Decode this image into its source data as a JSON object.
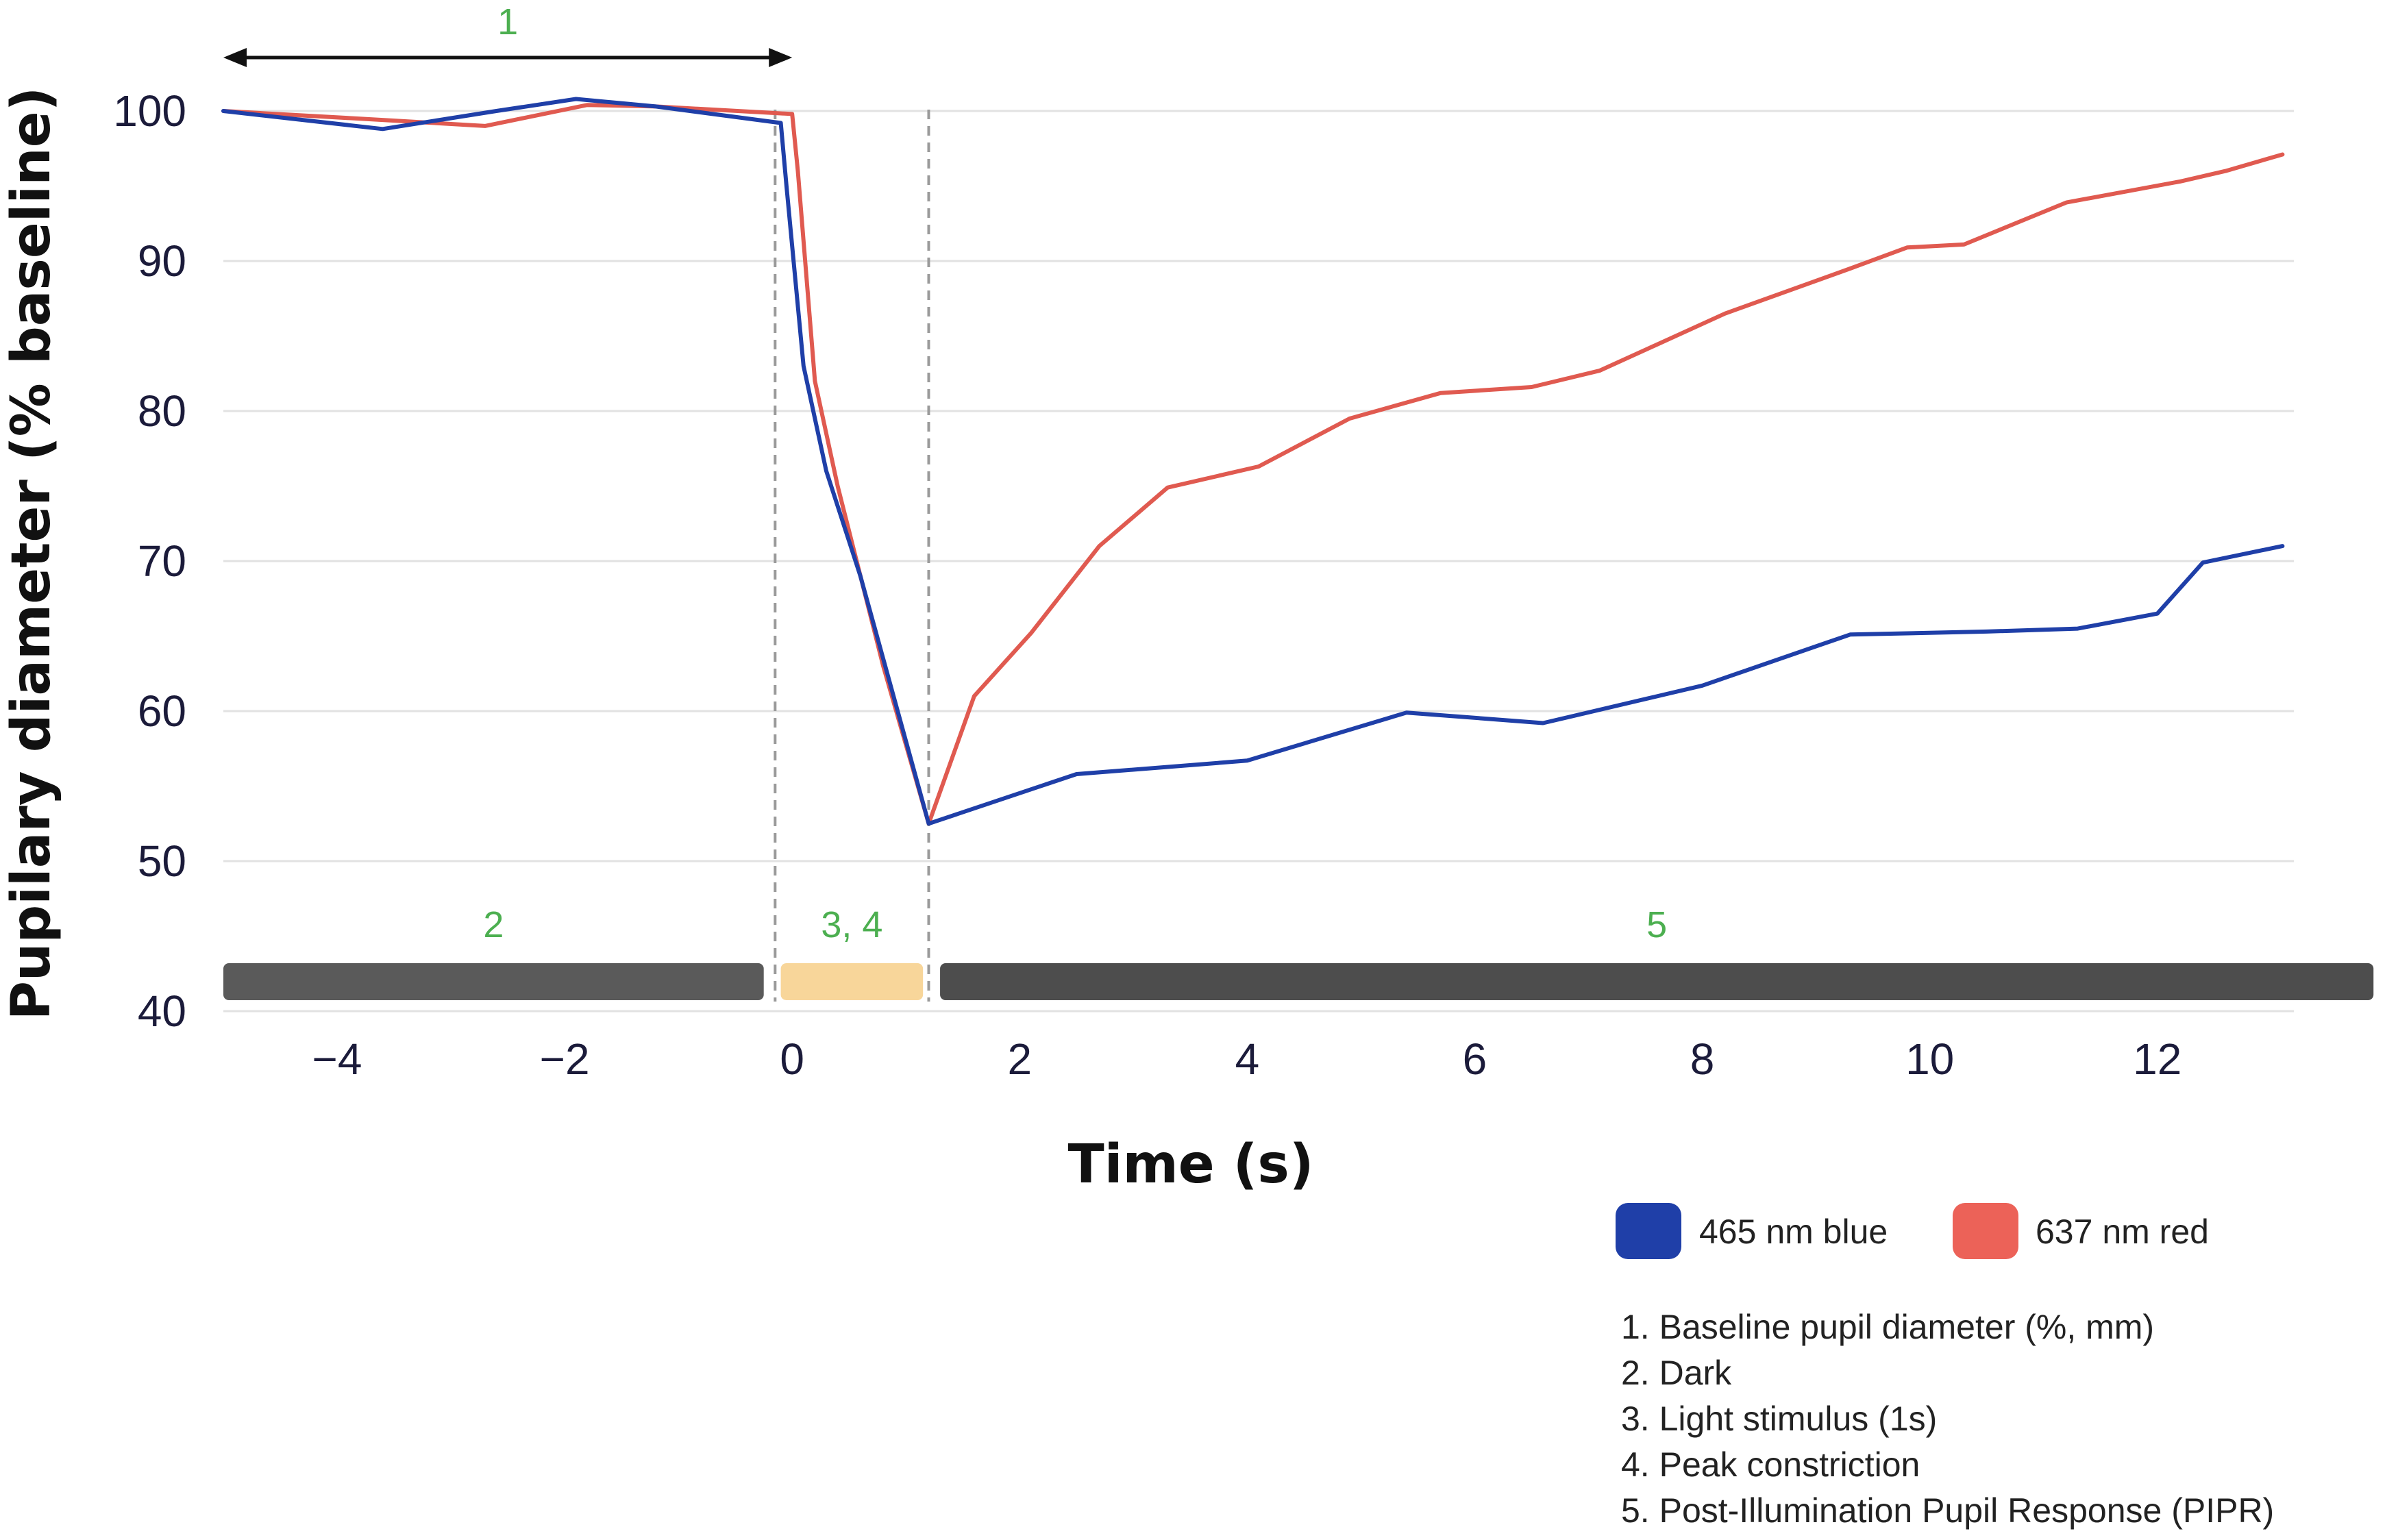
{
  "chart_data": {
    "type": "line",
    "xlabel": "Time (s)",
    "ylabel": "Pupilary diameter (% baseline)",
    "xlim": [
      -5,
      13.2
    ],
    "ylim": [
      40,
      100
    ],
    "x_ticks": [
      "-4",
      "-2",
      "0",
      "2",
      "4",
      "6",
      "8",
      "10",
      "12"
    ],
    "y_ticks": [
      "40",
      "50",
      "60",
      "70",
      "80",
      "90",
      "100"
    ],
    "grid": true,
    "series": [
      {
        "name": "465 nm blue",
        "color": "#1f3fa8",
        "points": [
          [
            -5,
            100
          ],
          [
            -3.6,
            98.8
          ],
          [
            -2.6,
            100
          ],
          [
            -1.9,
            100.8
          ],
          [
            -1.2,
            100.3
          ],
          [
            -0.1,
            99.2
          ],
          [
            -0.05,
            95
          ],
          [
            0.1,
            83
          ],
          [
            0.3,
            76
          ],
          [
            0.6,
            69
          ],
          [
            1.2,
            52.5
          ],
          [
            2.5,
            55.8
          ],
          [
            4,
            56.7
          ],
          [
            5.4,
            59.9
          ],
          [
            6.6,
            59.2
          ],
          [
            8,
            61.7
          ],
          [
            9.3,
            65.1
          ],
          [
            10.5,
            65.3
          ],
          [
            11.3,
            65.5
          ],
          [
            12,
            66.5
          ],
          [
            12.4,
            69.9
          ],
          [
            13.1,
            71
          ]
        ]
      },
      {
        "name": "637 nm red",
        "color": "#e05a50",
        "points": [
          [
            -5,
            100
          ],
          [
            -3.6,
            99.4
          ],
          [
            -2.7,
            99
          ],
          [
            -1.8,
            100.4
          ],
          [
            -1.2,
            100.3
          ],
          [
            0,
            99.8
          ],
          [
            0.05,
            96
          ],
          [
            0.2,
            82
          ],
          [
            0.4,
            75
          ],
          [
            0.8,
            63
          ],
          [
            1.2,
            52.5
          ],
          [
            1.6,
            61
          ],
          [
            2.1,
            65.2
          ],
          [
            2.7,
            71
          ],
          [
            3.3,
            74.9
          ],
          [
            4.1,
            76.3
          ],
          [
            4.9,
            79.5
          ],
          [
            5.7,
            81.2
          ],
          [
            6.5,
            81.6
          ],
          [
            7.1,
            82.7
          ],
          [
            8.2,
            86.5
          ],
          [
            9.3,
            89.5
          ],
          [
            9.8,
            90.9
          ],
          [
            10.3,
            91.1
          ],
          [
            11.2,
            93.9
          ],
          [
            12.2,
            95.3
          ],
          [
            12.6,
            96
          ],
          [
            13.1,
            97.1
          ]
        ]
      }
    ],
    "markers": {
      "dashed_lines_x": [
        -0.15,
        1.2
      ],
      "arrow": {
        "x_start": -5,
        "x_end": 0,
        "label": "1"
      },
      "phases": [
        {
          "label": "2",
          "x_start": -5,
          "x_end": -0.25,
          "color": "#5a5a5a"
        },
        {
          "label": "3, 4",
          "x_start": -0.1,
          "x_end": 1.15,
          "color": "#f8d69a"
        },
        {
          "label": "5",
          "x_start": 1.3,
          "x_end": 13.9,
          "color": "#4d4d4d"
        }
      ]
    },
    "legend": [
      {
        "label": "465 nm blue",
        "color": "#1f3fa8"
      },
      {
        "label": "637 nm red",
        "color": "#ec6258"
      }
    ],
    "notes": [
      "1. Baseline pupil diameter (%, mm)",
      "2. Dark",
      "3. Light stimulus (1s)",
      "4. Peak constriction",
      "5. Post-Illumination Pupil Response (PIPR)"
    ]
  }
}
